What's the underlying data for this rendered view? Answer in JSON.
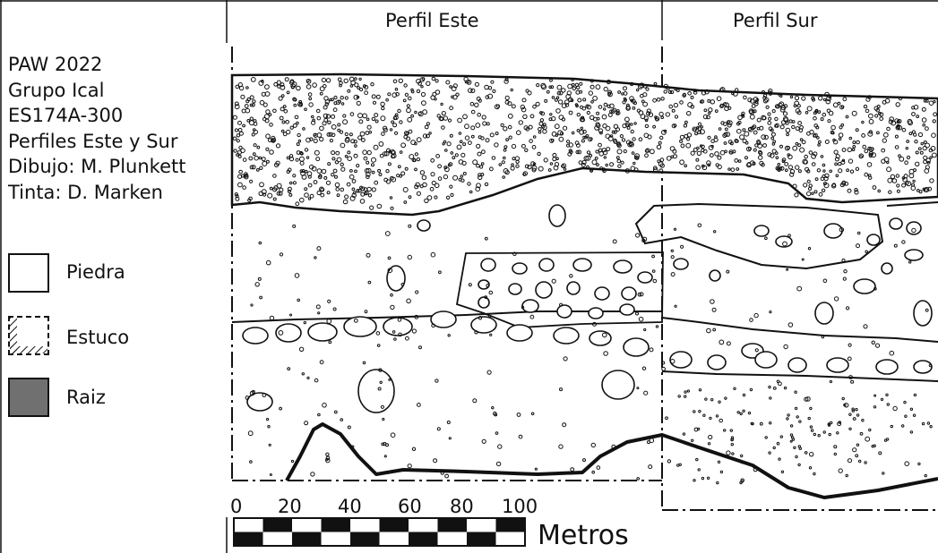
{
  "info": {
    "lines": [
      "PAW 2022",
      "Grupo Ical",
      "ES174A-300",
      "Perfiles Este y Sur",
      "Dibujo: M. Plunkett",
      "Tinta: D. Marken"
    ]
  },
  "profiles": {
    "east_title": "Perfil Este",
    "south_title": "Perfil Sur"
  },
  "legend": [
    {
      "label": "Piedra",
      "color": "#ffffff"
    },
    {
      "label": "Estuco",
      "color": "#ffffff"
    },
    {
      "label": "Raiz",
      "color": "#707070"
    }
  ],
  "scale": {
    "ticks": [
      "0",
      "20",
      "40",
      "60",
      "80",
      "100"
    ],
    "unit": "Metros"
  }
}
